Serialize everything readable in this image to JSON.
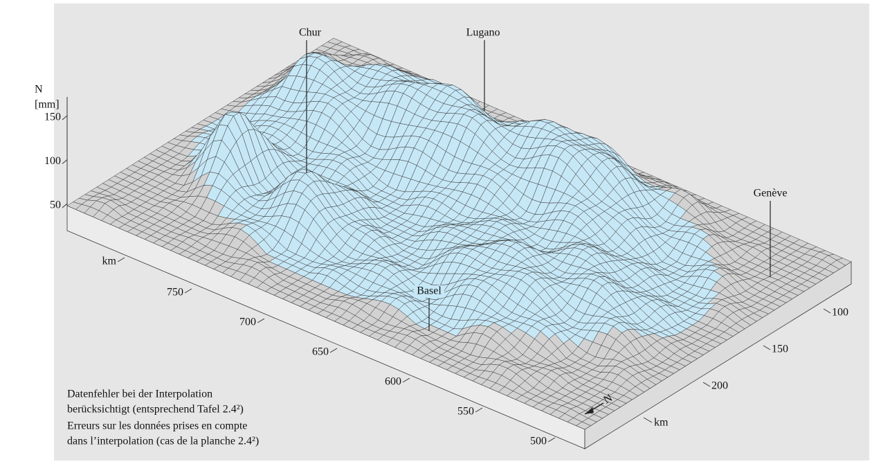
{
  "axes": {
    "z": {
      "label": [
        "N",
        "[mm]"
      ],
      "ticks": [
        50,
        100,
        150
      ]
    },
    "x": {
      "label": "km",
      "ticks": [
        500,
        550,
        600,
        650,
        700,
        750
      ]
    },
    "y": {
      "label": "km",
      "ticks": [
        100,
        150,
        200
      ]
    }
  },
  "places": [
    "Chur",
    "Lugano",
    "Genève",
    "Basel"
  ],
  "caption": [
    "Datenfehler bei der Interpolation",
    "berücksichtigt (entsprechend Tafel 2.4²)",
    "Erreurs sur les données prises en compte",
    "dans l’interpolation (cas de la planche 2.4²)"
  ]
}
